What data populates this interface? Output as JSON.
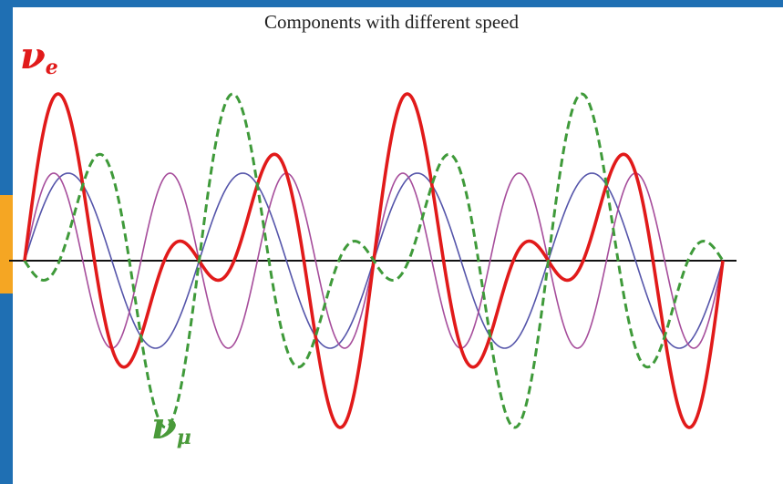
{
  "chart_data": {
    "type": "line",
    "title": "Components with different speed",
    "xlabel": "",
    "ylabel": "",
    "x_range": [
      0,
      4
    ],
    "ylim": [
      -2,
      2
    ],
    "grid": false,
    "series": [
      {
        "name": "",
        "color": "#5555aa",
        "style": "solid",
        "width": 1.6,
        "amplitude": 1.0,
        "freq": 2.0,
        "shape": "sine"
      },
      {
        "name": "",
        "color": "#a64d9b",
        "style": "solid",
        "width": 1.6,
        "amplitude": 1.0,
        "freq": 3.0,
        "shape": "sine"
      },
      {
        "name": "νe",
        "color": "#e11a1a",
        "style": "solid",
        "width": 3.6,
        "amplitude": 1.0,
        "freq": [
          2.0,
          3.0
        ],
        "shape": "sum"
      },
      {
        "name": "νμ",
        "color": "#3f9a3a",
        "style": "dashed",
        "width": 3.0,
        "amplitude": 1.0,
        "freq": [
          2.0,
          3.0
        ],
        "shape": "difference"
      }
    ]
  },
  "labels": {
    "nu_e": {
      "base": "ν",
      "sub": "e"
    },
    "nu_mu": {
      "base": "ν",
      "sub": "μ"
    }
  },
  "colors": {
    "frame_blue": "#1f6fb3",
    "frame_orange": "#f5a623"
  }
}
